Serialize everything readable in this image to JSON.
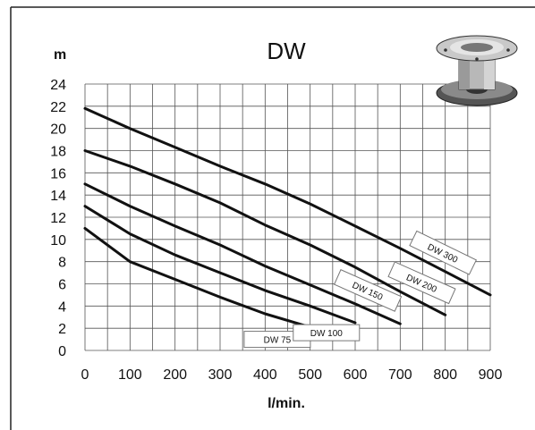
{
  "chart_data": {
    "type": "line",
    "title": "DW",
    "xlabel": "l/min.",
    "ylabel": "m",
    "xlim": [
      0,
      900
    ],
    "ylim": [
      0,
      24
    ],
    "x_ticks": [
      "0",
      "100",
      "200",
      "300",
      "400",
      "500",
      "600",
      "700",
      "800",
      "900"
    ],
    "y_ticks": [
      "0",
      "2",
      "4",
      "6",
      "8",
      "10",
      "12",
      "14",
      "16",
      "18",
      "20",
      "22",
      "24"
    ],
    "grid": true,
    "series": [
      {
        "name": "DW 75",
        "points": [
          [
            0,
            11
          ],
          [
            100,
            8
          ],
          [
            200,
            6.4
          ],
          [
            300,
            4.8
          ],
          [
            400,
            3.3
          ],
          [
            500,
            2.1
          ]
        ]
      },
      {
        "name": "DW 100",
        "points": [
          [
            0,
            13
          ],
          [
            100,
            10.5
          ],
          [
            200,
            8.6
          ],
          [
            300,
            7.0
          ],
          [
            400,
            5.4
          ],
          [
            500,
            4.0
          ],
          [
            600,
            2.5
          ]
        ]
      },
      {
        "name": "DW 150",
        "points": [
          [
            0,
            15
          ],
          [
            100,
            13
          ],
          [
            200,
            11.2
          ],
          [
            300,
            9.5
          ],
          [
            400,
            7.6
          ],
          [
            500,
            5.9
          ],
          [
            600,
            4.2
          ],
          [
            700,
            2.4
          ]
        ]
      },
      {
        "name": "DW 200",
        "points": [
          [
            0,
            18
          ],
          [
            100,
            16.6
          ],
          [
            200,
            15
          ],
          [
            300,
            13.3
          ],
          [
            400,
            11.3
          ],
          [
            500,
            9.5
          ],
          [
            600,
            7.5
          ],
          [
            700,
            5.3
          ],
          [
            800,
            3.2
          ]
        ]
      },
      {
        "name": "DW 300",
        "points": [
          [
            0,
            21.8
          ],
          [
            100,
            20
          ],
          [
            200,
            18.3
          ],
          [
            300,
            16.6
          ],
          [
            400,
            15
          ],
          [
            500,
            13.2
          ],
          [
            600,
            11.2
          ],
          [
            700,
            9.2
          ],
          [
            800,
            7.1
          ],
          [
            900,
            5
          ]
        ]
      }
    ]
  }
}
